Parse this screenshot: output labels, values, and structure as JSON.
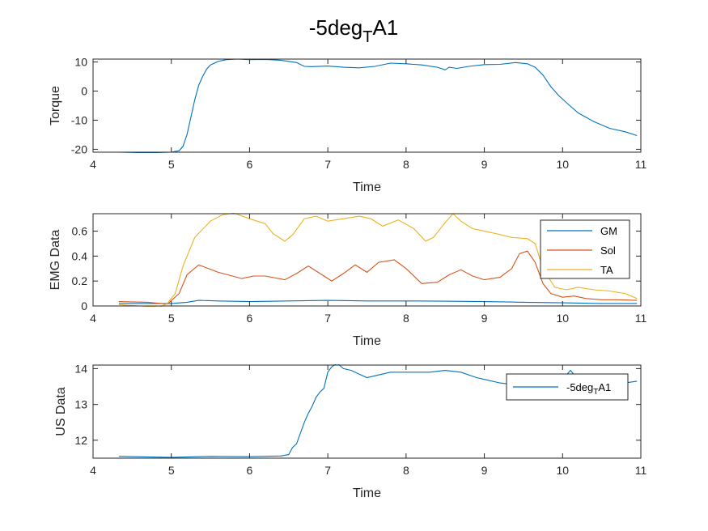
{
  "title": {
    "main": "-5deg",
    "sub": "T",
    "suffix": "A1"
  },
  "colors": {
    "blue": "#0072BD",
    "orange": "#D95319",
    "yellow": "#EDB120",
    "axis": "#262626"
  },
  "chart_data": [
    {
      "type": "line",
      "xlabel": "Time",
      "ylabel": "Torque",
      "xlim": [
        4,
        11
      ],
      "ylim": [
        -21,
        11
      ],
      "xticks": [
        4,
        5,
        6,
        7,
        8,
        9,
        10,
        11
      ],
      "yticks": [
        -20,
        -10,
        0,
        10
      ],
      "legend": null,
      "series": [
        {
          "color": "#0072BD",
          "x": [
            4.33,
            4.7,
            5.0,
            5.1,
            5.15,
            5.2,
            5.25,
            5.3,
            5.35,
            5.4,
            5.45,
            5.5,
            5.6,
            5.7,
            5.85,
            6.0,
            6.2,
            6.4,
            6.6,
            6.7,
            6.8,
            7.0,
            7.2,
            7.4,
            7.6,
            7.8,
            8.0,
            8.2,
            8.4,
            8.5,
            8.55,
            8.65,
            8.8,
            9.0,
            9.2,
            9.4,
            9.55,
            9.65,
            9.75,
            9.85,
            9.95,
            10.05,
            10.2,
            10.4,
            10.6,
            10.8,
            10.95
          ],
          "y": [
            -21,
            -21.2,
            -21,
            -20.5,
            -19,
            -15,
            -9,
            -3,
            2,
            5,
            7.5,
            9,
            10.2,
            10.8,
            11,
            10.8,
            10.9,
            10.6,
            9.8,
            8.5,
            8.4,
            8.6,
            8.2,
            8.0,
            8.5,
            9.6,
            9.4,
            9.0,
            8.2,
            7.3,
            8.2,
            7.8,
            8.5,
            9.1,
            9.2,
            9.8,
            9.4,
            8.2,
            5.5,
            1.5,
            -1.5,
            -4.0,
            -7.5,
            -10.5,
            -12.8,
            -14,
            -15.3
          ]
        }
      ]
    },
    {
      "type": "line",
      "xlabel": "Time",
      "ylabel": "EMG Data",
      "xlim": [
        4,
        11
      ],
      "ylim": [
        0,
        0.74
      ],
      "xticks": [
        4,
        5,
        6,
        7,
        8,
        9,
        10,
        11
      ],
      "yticks": [
        0,
        0.2,
        0.4,
        0.6
      ],
      "legend": "top-right",
      "series": [
        {
          "name": "GM",
          "color": "#0072BD",
          "x": [
            4.33,
            4.8,
            5.0,
            5.2,
            5.35,
            5.6,
            6.0,
            6.5,
            7.0,
            7.5,
            8.0,
            8.5,
            9.0,
            9.5,
            10.0,
            10.5,
            10.95
          ],
          "y": [
            0.02,
            0.02,
            0.02,
            0.03,
            0.045,
            0.04,
            0.035,
            0.04,
            0.045,
            0.04,
            0.04,
            0.038,
            0.035,
            0.03,
            0.025,
            0.02,
            0.02
          ]
        },
        {
          "name": "Sol",
          "color": "#D95319",
          "x": [
            4.33,
            4.7,
            4.95,
            5.1,
            5.2,
            5.35,
            5.6,
            5.9,
            6.05,
            6.2,
            6.45,
            6.6,
            6.75,
            6.9,
            7.05,
            7.2,
            7.35,
            7.5,
            7.65,
            7.85,
            8.0,
            8.2,
            8.4,
            8.55,
            8.7,
            8.85,
            9.0,
            9.2,
            9.35,
            9.45,
            9.55,
            9.65,
            9.75,
            9.85,
            10.0,
            10.15,
            10.3,
            10.5,
            10.7,
            10.95
          ],
          "y": [
            0.035,
            0.03,
            0.015,
            0.1,
            0.25,
            0.33,
            0.27,
            0.22,
            0.24,
            0.24,
            0.21,
            0.26,
            0.32,
            0.26,
            0.2,
            0.26,
            0.33,
            0.27,
            0.35,
            0.37,
            0.3,
            0.18,
            0.19,
            0.25,
            0.29,
            0.24,
            0.21,
            0.23,
            0.3,
            0.42,
            0.44,
            0.35,
            0.18,
            0.1,
            0.07,
            0.08,
            0.06,
            0.05,
            0.05,
            0.045
          ]
        },
        {
          "name": "TA",
          "color": "#EDB120",
          "x": [
            4.33,
            4.6,
            4.85,
            4.95,
            5.05,
            5.15,
            5.3,
            5.5,
            5.65,
            5.8,
            6.0,
            6.2,
            6.3,
            6.45,
            6.55,
            6.7,
            6.85,
            7.0,
            7.2,
            7.4,
            7.55,
            7.7,
            7.9,
            8.1,
            8.25,
            8.35,
            8.5,
            8.6,
            8.7,
            8.85,
            9.0,
            9.15,
            9.35,
            9.55,
            9.65,
            9.75,
            9.9,
            10.05,
            10.2,
            10.4,
            10.6,
            10.8,
            10.95
          ],
          "y": [
            0.01,
            0.0,
            -0.01,
            0.02,
            0.1,
            0.32,
            0.55,
            0.68,
            0.73,
            0.745,
            0.7,
            0.66,
            0.58,
            0.52,
            0.57,
            0.7,
            0.72,
            0.68,
            0.7,
            0.72,
            0.7,
            0.64,
            0.69,
            0.62,
            0.52,
            0.55,
            0.67,
            0.74,
            0.68,
            0.62,
            0.6,
            0.58,
            0.55,
            0.54,
            0.5,
            0.3,
            0.15,
            0.13,
            0.15,
            0.13,
            0.12,
            0.1,
            0.06
          ]
        }
      ]
    },
    {
      "type": "line",
      "xlabel": "Time",
      "ylabel": "US Data",
      "xlim": [
        4,
        11
      ],
      "ylim": [
        11.5,
        14.1
      ],
      "xticks": [
        4,
        5,
        6,
        7,
        8,
        9,
        10,
        11
      ],
      "yticks": [
        12,
        13,
        14
      ],
      "legend": "top-right",
      "series": [
        {
          "name": "-5deg",
          "name_sub": "T",
          "name_suffix": "A1",
          "color": "#0072BD",
          "x": [
            4.33,
            5.0,
            5.5,
            6.0,
            6.4,
            6.5,
            6.55,
            6.6,
            6.65,
            6.7,
            6.75,
            6.8,
            6.85,
            6.9,
            6.95,
            7.0,
            7.05,
            7.12,
            7.2,
            7.3,
            7.4,
            7.5,
            7.6,
            7.8,
            8.0,
            8.3,
            8.5,
            8.7,
            8.9,
            9.0,
            9.2,
            9.4,
            9.6,
            9.8,
            10.0,
            10.1,
            10.2,
            10.4,
            10.6,
            10.8,
            10.95
          ],
          "y": [
            11.55,
            11.52,
            11.55,
            11.54,
            11.56,
            11.6,
            11.8,
            11.9,
            12.2,
            12.5,
            12.75,
            12.95,
            13.2,
            13.35,
            13.45,
            13.9,
            14.05,
            14.15,
            14.0,
            13.95,
            13.85,
            13.75,
            13.8,
            13.9,
            13.9,
            13.9,
            13.95,
            13.9,
            13.75,
            13.7,
            13.6,
            13.55,
            13.5,
            13.65,
            13.7,
            13.95,
            13.7,
            13.6,
            13.65,
            13.6,
            13.65
          ]
        }
      ]
    }
  ]
}
